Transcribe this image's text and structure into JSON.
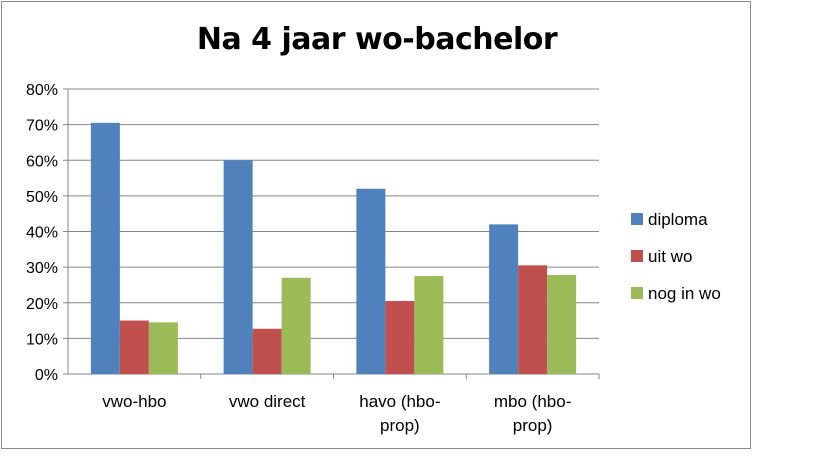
{
  "chart_data": {
    "type": "bar",
    "title": "Na 4 jaar wo-bachelor",
    "categories": [
      [
        "vwo-hbo"
      ],
      [
        "vwo direct"
      ],
      [
        "havo (hbo-",
        "prop)"
      ],
      [
        "mbo (hbo-",
        "prop)"
      ]
    ],
    "series": [
      {
        "name": "diploma",
        "color": "#4f81bd",
        "values": [
          0.705,
          0.6,
          0.52,
          0.42
        ]
      },
      {
        "name": "uit wo",
        "color": "#c0504d",
        "values": [
          0.15,
          0.127,
          0.205,
          0.305
        ]
      },
      {
        "name": "nog in wo",
        "color": "#9bbb59",
        "values": [
          0.145,
          0.27,
          0.275,
          0.278
        ]
      }
    ],
    "ylim": [
      0,
      0.8
    ],
    "yticks": [
      "0%",
      "10%",
      "20%",
      "30%",
      "40%",
      "50%",
      "60%",
      "70%",
      "80%"
    ],
    "grid": true,
    "legend_position": "right"
  }
}
